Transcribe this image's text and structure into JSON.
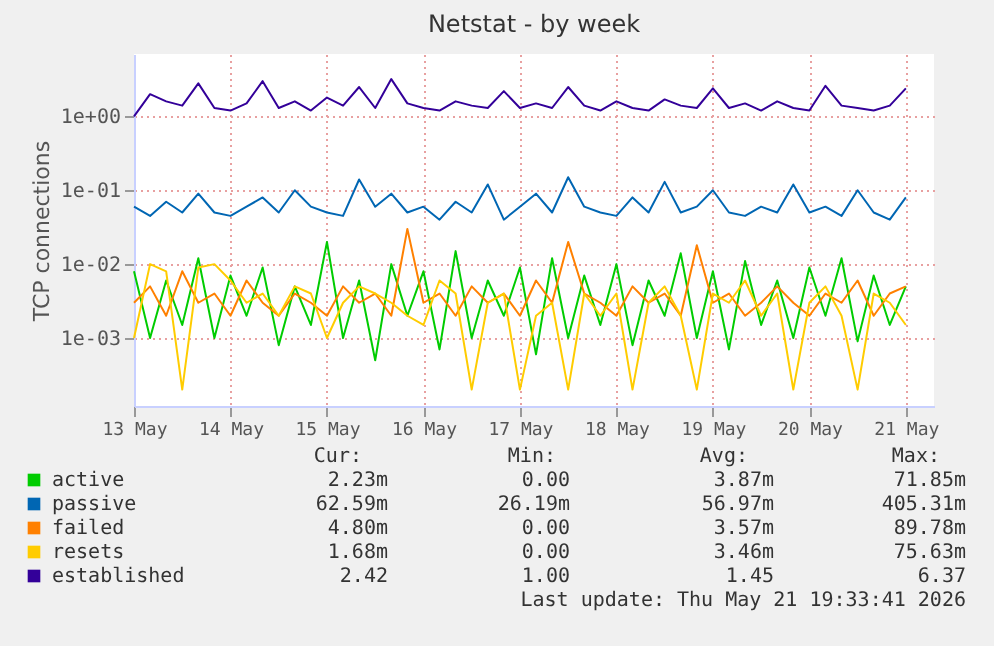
{
  "chart_data": {
    "type": "line",
    "title": "Netstat - by week",
    "ylabel": "TCP connections",
    "log": true,
    "grid": true,
    "legend": "bottom",
    "line_style": "solid",
    "x": [
      "2026-05-13T00:00",
      "2026-05-13T04:00",
      "2026-05-13T08:00",
      "2026-05-13T12:00",
      "2026-05-13T16:00",
      "2026-05-13T20:00",
      "2026-05-14T00:00",
      "2026-05-14T04:00",
      "2026-05-14T08:00",
      "2026-05-14T12:00",
      "2026-05-14T16:00",
      "2026-05-14T20:00",
      "2026-05-15T00:00",
      "2026-05-15T04:00",
      "2026-05-15T08:00",
      "2026-05-15T12:00",
      "2026-05-15T16:00",
      "2026-05-15T20:00",
      "2026-05-16T00:00",
      "2026-05-16T04:00",
      "2026-05-16T08:00",
      "2026-05-16T12:00",
      "2026-05-16T16:00",
      "2026-05-16T20:00",
      "2026-05-17T00:00",
      "2026-05-17T04:00",
      "2026-05-17T08:00",
      "2026-05-17T12:00",
      "2026-05-17T16:00",
      "2026-05-17T20:00",
      "2026-05-18T00:00",
      "2026-05-18T04:00",
      "2026-05-18T08:00",
      "2026-05-18T12:00",
      "2026-05-18T16:00",
      "2026-05-18T20:00",
      "2026-05-19T00:00",
      "2026-05-19T04:00",
      "2026-05-19T08:00",
      "2026-05-19T12:00",
      "2026-05-19T16:00",
      "2026-05-19T20:00",
      "2026-05-20T00:00",
      "2026-05-20T04:00",
      "2026-05-20T08:00",
      "2026-05-20T12:00",
      "2026-05-20T16:00",
      "2026-05-20T20:00",
      "2026-05-21T00:00"
    ],
    "xlim": [
      "2026-05-13T00:00",
      "2026-05-21T07:00"
    ],
    "xticks": [
      {
        "value": "2026-05-13",
        "label": "13 May"
      },
      {
        "value": "2026-05-14",
        "label": "14 May"
      },
      {
        "value": "2026-05-15",
        "label": "15 May"
      },
      {
        "value": "2026-05-16",
        "label": "16 May"
      },
      {
        "value": "2026-05-17",
        "label": "17 May"
      },
      {
        "value": "2026-05-18",
        "label": "18 May"
      },
      {
        "value": "2026-05-19",
        "label": "19 May"
      },
      {
        "value": "2026-05-20",
        "label": "20 May"
      },
      {
        "value": "2026-05-21",
        "label": "21 May"
      }
    ],
    "ylim": [
      0.00012,
      7
    ],
    "yticks": [
      {
        "value": 0.001,
        "label": "1e-03"
      },
      {
        "value": 0.01,
        "label": "1e-02"
      },
      {
        "value": 0.1,
        "label": "1e-01"
      },
      {
        "value": 1,
        "label": "1e+00"
      }
    ],
    "series": [
      {
        "name": "active",
        "color": "#00cc00",
        "values": [
          0.008,
          0.001,
          0.006,
          0.0015,
          0.012,
          0.001,
          0.007,
          0.002,
          0.009,
          0.0008,
          0.005,
          0.0015,
          0.02,
          0.001,
          0.006,
          0.0005,
          0.01,
          0.002,
          0.008,
          0.0007,
          0.015,
          0.001,
          0.006,
          0.002,
          0.009,
          0.0006,
          0.012,
          0.001,
          0.007,
          0.0015,
          0.01,
          0.0008,
          0.006,
          0.002,
          0.014,
          0.001,
          0.008,
          0.0007,
          0.011,
          0.0015,
          0.006,
          0.001,
          0.009,
          0.002,
          0.012,
          0.0009,
          0.007,
          0.0015,
          0.005
        ]
      },
      {
        "name": "passive",
        "color": "#0066b3",
        "values": [
          0.06,
          0.045,
          0.07,
          0.05,
          0.09,
          0.05,
          0.045,
          0.06,
          0.08,
          0.05,
          0.1,
          0.06,
          0.05,
          0.045,
          0.14,
          0.06,
          0.09,
          0.05,
          0.06,
          0.04,
          0.07,
          0.05,
          0.12,
          0.04,
          0.06,
          0.09,
          0.05,
          0.15,
          0.06,
          0.05,
          0.045,
          0.08,
          0.05,
          0.13,
          0.05,
          0.06,
          0.1,
          0.05,
          0.045,
          0.06,
          0.05,
          0.12,
          0.05,
          0.06,
          0.045,
          0.1,
          0.05,
          0.04,
          0.08
        ]
      },
      {
        "name": "failed",
        "color": "#ff8000",
        "values": [
          0.003,
          0.005,
          0.002,
          0.008,
          0.003,
          0.004,
          0.002,
          0.006,
          0.003,
          0.002,
          0.004,
          0.003,
          0.002,
          0.005,
          0.003,
          0.004,
          0.002,
          0.03,
          0.003,
          0.004,
          0.002,
          0.005,
          0.003,
          0.004,
          0.002,
          0.006,
          0.003,
          0.02,
          0.004,
          0.003,
          0.002,
          0.005,
          0.003,
          0.004,
          0.002,
          0.018,
          0.003,
          0.004,
          0.002,
          0.003,
          0.005,
          0.003,
          0.002,
          0.004,
          0.003,
          0.006,
          0.002,
          0.004,
          0.005
        ]
      },
      {
        "name": "resets",
        "color": "#ffcc00",
        "values": [
          0.001,
          0.01,
          0.008,
          0.0002,
          0.009,
          0.01,
          0.006,
          0.003,
          0.004,
          0.002,
          0.005,
          0.004,
          0.001,
          0.003,
          0.005,
          0.004,
          0.003,
          0.002,
          0.0015,
          0.006,
          0.004,
          0.0002,
          0.003,
          0.004,
          0.0002,
          0.002,
          0.003,
          0.0002,
          0.004,
          0.002,
          0.004,
          0.0002,
          0.003,
          0.005,
          0.002,
          0.0002,
          0.004,
          0.003,
          0.006,
          0.002,
          0.004,
          0.0002,
          0.003,
          0.005,
          0.002,
          0.0002,
          0.004,
          0.003,
          0.0015
        ]
      },
      {
        "name": "established",
        "color": "#330099",
        "values": [
          1.0,
          2.0,
          1.6,
          1.4,
          2.8,
          1.3,
          1.2,
          1.5,
          3.0,
          1.3,
          1.6,
          1.2,
          1.8,
          1.4,
          2.5,
          1.3,
          3.2,
          1.5,
          1.3,
          1.2,
          1.6,
          1.4,
          1.3,
          2.2,
          1.3,
          1.5,
          1.3,
          2.5,
          1.4,
          1.2,
          1.6,
          1.3,
          1.2,
          1.7,
          1.4,
          1.3,
          2.4,
          1.3,
          1.5,
          1.2,
          1.6,
          1.3,
          1.2,
          2.6,
          1.4,
          1.3,
          1.2,
          1.4,
          2.4
        ]
      }
    ],
    "annotations": [
      "Cur:",
      "Min:",
      "Avg:",
      "Max:",
      "2.23m",
      "0.00",
      "3.87m",
      "71.85m",
      "62.59m",
      "26.19m",
      "56.97m",
      "405.31m",
      "4.80m",
      "0.00",
      "3.57m",
      "89.78m",
      "1.68m",
      "0.00",
      "3.46m",
      "75.63m",
      "2.42",
      "1.00",
      "1.45",
      "6.37",
      "Last update: Thu May 21 19:33:41 2026"
    ]
  }
}
